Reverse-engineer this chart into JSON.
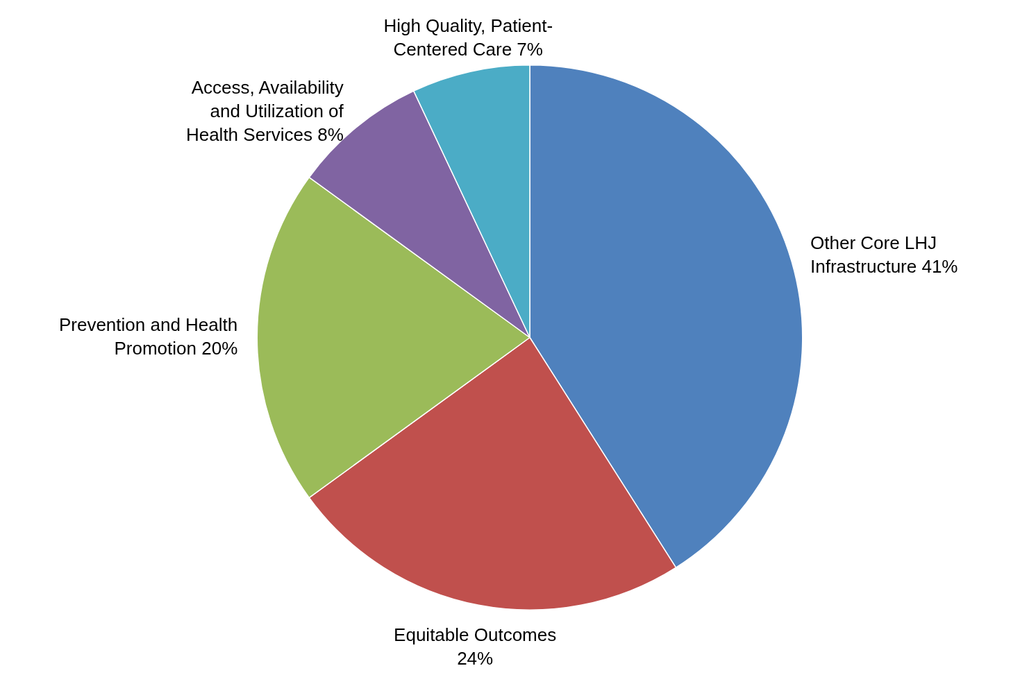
{
  "chart_data": {
    "type": "pie",
    "categories": [
      "Other Core LHJ Infrastructure",
      "Equitable Outcomes",
      "Prevention and Health Promotion",
      "Access, Availability and Utilization of Health Services",
      "High Quality, Patient-Centered Care"
    ],
    "values": [
      41,
      24,
      20,
      8,
      7
    ],
    "colors": [
      "#4f81bd",
      "#c0504d",
      "#9bbb59",
      "#8064a2",
      "#4bacc6"
    ],
    "value_labels": [
      "41%",
      "24%",
      "20%",
      "8%",
      "7%"
    ],
    "legend": false
  }
}
